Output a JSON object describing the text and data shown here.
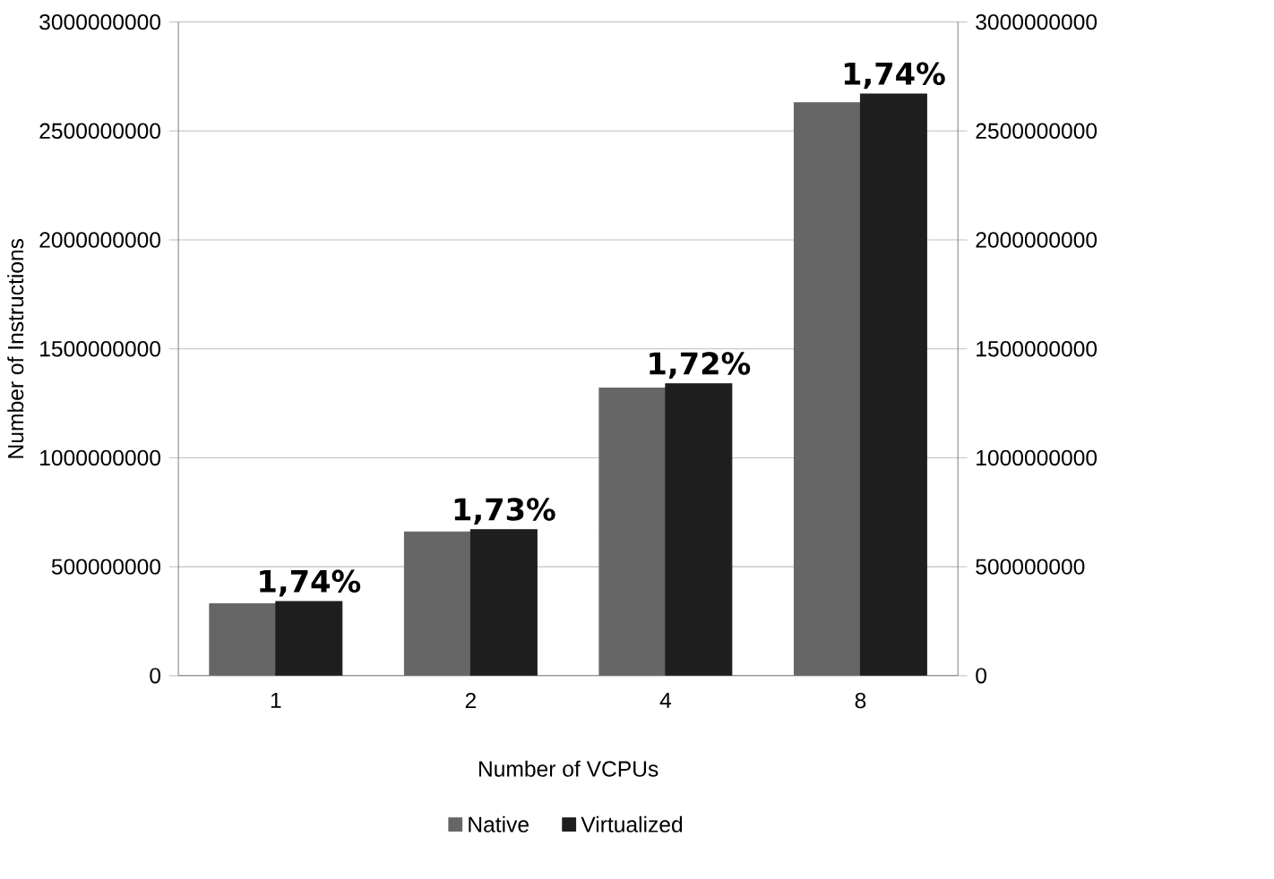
{
  "chart_data": {
    "type": "bar",
    "xlabel": "Number of VCPUs",
    "ylabel": "Number of Instructions",
    "categories": [
      "1",
      "2",
      "4",
      "8"
    ],
    "series": [
      {
        "name": "Native",
        "color": "#666666",
        "values": [
          330000000,
          660000000,
          1320000000,
          2630000000
        ]
      },
      {
        "name": "Virtualized",
        "color": "#1e1e1e",
        "values": [
          340000000,
          670000000,
          1340000000,
          2670000000
        ]
      }
    ],
    "ylim": [
      0,
      3000000000
    ],
    "yticks": [
      0,
      500000000,
      1000000000,
      1500000000,
      2000000000,
      2500000000,
      3000000000
    ],
    "y2lim": [
      0,
      3000000000
    ],
    "y2ticks": [
      0,
      500000000,
      1000000000,
      1500000000,
      2000000000,
      2500000000,
      3000000000
    ],
    "grid": "y",
    "legend": "bottom",
    "annotations": [
      {
        "text": "1,74%",
        "x": "1",
        "y": 340000000
      },
      {
        "text": "1,73%",
        "x": "2",
        "y": 670000000
      },
      {
        "text": "1,72%",
        "x": "4",
        "y": 1340000000
      },
      {
        "text": "1,74%",
        "x": "8",
        "y": 2670000000
      }
    ]
  }
}
